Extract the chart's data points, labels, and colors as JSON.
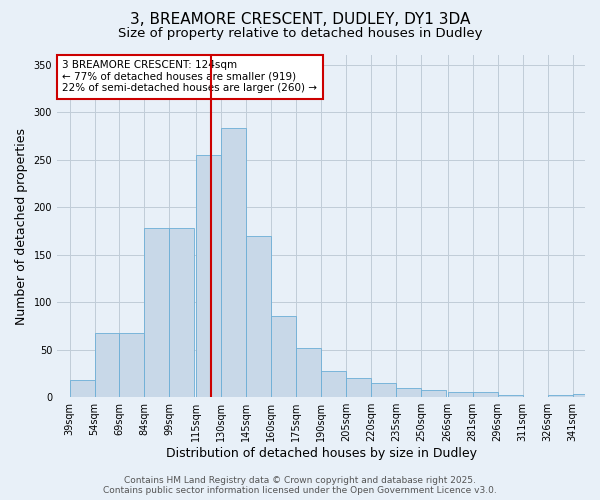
{
  "title": "3, BREAMORE CRESCENT, DUDLEY, DY1 3DA",
  "subtitle": "Size of property relative to detached houses in Dudley",
  "xlabel": "Distribution of detached houses by size in Dudley",
  "ylabel": "Number of detached properties",
  "bar_color": "#c8d8e8",
  "bar_edge_color": "#6baed6",
  "grid_color": "#c0ccd8",
  "background_color": "#e8f0f8",
  "vline_x": 124,
  "vline_color": "#cc0000",
  "annotation_text": "3 BREAMORE CRESCENT: 124sqm\n← 77% of detached houses are smaller (919)\n22% of semi-detached houses are larger (260) →",
  "annotation_box_color": "#ffffff",
  "annotation_edge_color": "#cc0000",
  "bins_left": [
    39,
    54,
    69,
    84,
    99,
    115,
    130,
    145,
    160,
    175,
    190,
    205,
    220,
    235,
    250,
    266,
    281,
    296,
    311,
    326,
    341
  ],
  "counts": [
    18,
    68,
    68,
    178,
    178,
    255,
    283,
    170,
    85,
    52,
    28,
    20,
    15,
    10,
    8,
    5,
    5,
    2,
    0,
    2,
    3
  ],
  "bin_width": 15,
  "ylim": [
    0,
    360
  ],
  "yticks": [
    0,
    50,
    100,
    150,
    200,
    250,
    300,
    350
  ],
  "footer_text": "Contains HM Land Registry data © Crown copyright and database right 2025.\nContains public sector information licensed under the Open Government Licence v3.0.",
  "title_fontsize": 11,
  "subtitle_fontsize": 9.5,
  "tick_fontsize": 7,
  "xlabel_fontsize": 9,
  "ylabel_fontsize": 9,
  "annotation_fontsize": 7.5,
  "footer_fontsize": 6.5
}
